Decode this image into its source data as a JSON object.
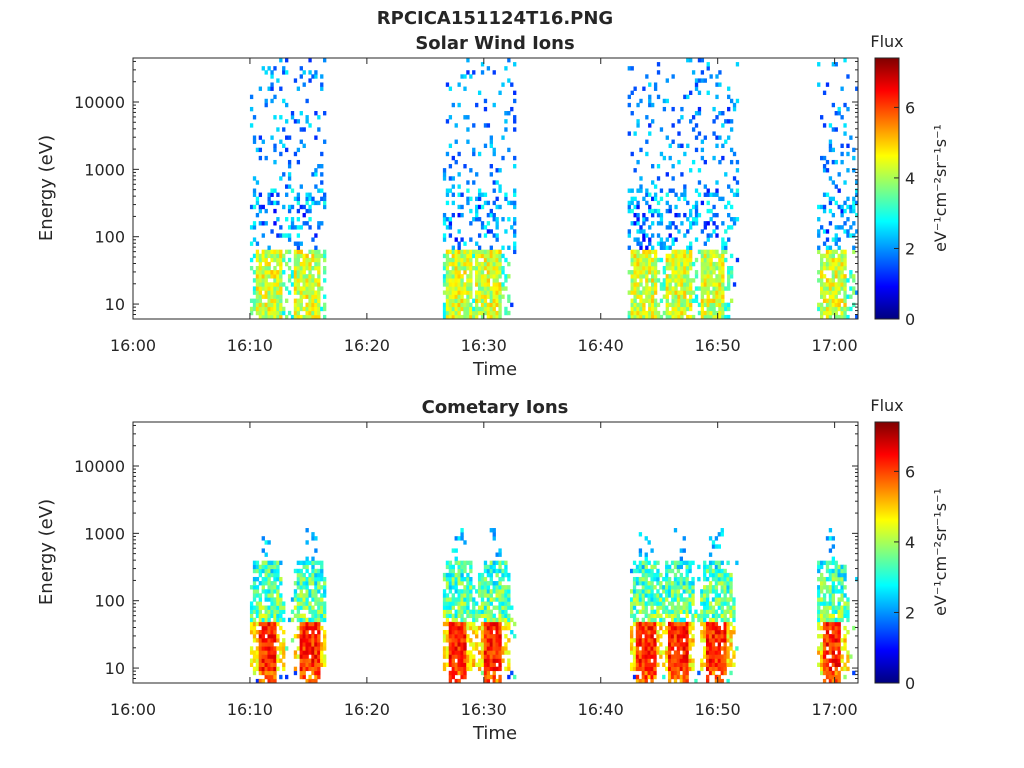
{
  "figure": {
    "title": "RPCICA151124T16.PNG"
  },
  "colorbar": {
    "title": "Flux",
    "label": "eV⁻¹cm⁻²sr⁻¹s⁻¹",
    "ticks": [
      "0",
      "2",
      "4",
      "6"
    ],
    "range": [
      0,
      7.4
    ],
    "colormap": "jet"
  },
  "chart_data": [
    {
      "type": "heatmap",
      "title": "Solar Wind Ions",
      "xlabel": "Time",
      "ylabel": "Energy (eV)",
      "x_ticks": [
        "16:00",
        "16:10",
        "16:20",
        "16:30",
        "16:40",
        "16:50",
        "17:00"
      ],
      "x_range_minutes": [
        0,
        62
      ],
      "y_ticks": [
        "10",
        "100",
        "1000",
        "10000"
      ],
      "y_scale": "log",
      "y_range_eV": [
        6,
        45000
      ],
      "bursts": [
        {
          "start_min": 10.0,
          "end_min": 16.4,
          "peaks_min": [
            11.5,
            14.8
          ]
        },
        {
          "start_min": 26.5,
          "end_min": 32.6,
          "peaks_min": [
            27.7,
            30.3
          ]
        },
        {
          "start_min": 42.3,
          "end_min": 51.8,
          "peaks_min": [
            43.6,
            46.6,
            49.4
          ]
        },
        {
          "start_min": 58.5,
          "end_min": 62.0,
          "peaks_min": [
            59.8
          ]
        }
      ],
      "core_flux": {
        "low_energy_eV": [
          6,
          60
        ],
        "flux_range": [
          3.5,
          5.0
        ]
      },
      "tail_flux": {
        "energy_eV": [
          60,
          40000
        ],
        "flux_range": [
          1.0,
          2.8
        ]
      }
    },
    {
      "type": "heatmap",
      "title": "Cometary Ions",
      "xlabel": "Time",
      "ylabel": "Energy (eV)",
      "x_ticks": [
        "16:00",
        "16:10",
        "16:20",
        "16:30",
        "16:40",
        "16:50",
        "17:00"
      ],
      "x_range_minutes": [
        0,
        62
      ],
      "y_ticks": [
        "10",
        "100",
        "1000",
        "10000"
      ],
      "y_scale": "log",
      "y_range_eV": [
        6,
        45000
      ],
      "bursts": [
        {
          "start_min": 10.0,
          "end_min": 16.4,
          "peaks_min": [
            11.3,
            15.0
          ]
        },
        {
          "start_min": 26.5,
          "end_min": 32.6,
          "peaks_min": [
            27.7,
            30.7
          ]
        },
        {
          "start_min": 42.5,
          "end_min": 51.8,
          "peaks_min": [
            43.8,
            46.5,
            49.8
          ]
        },
        {
          "start_min": 58.5,
          "end_min": 62.0,
          "peaks_min": [
            59.6
          ]
        }
      ],
      "core_flux": {
        "energy_eV": [
          10,
          50
        ],
        "flux_range": [
          5.5,
          6.8
        ]
      },
      "halo_flux": {
        "energy_eV": [
          50,
          400
        ],
        "flux_range": [
          2.5,
          4.5
        ]
      }
    }
  ]
}
